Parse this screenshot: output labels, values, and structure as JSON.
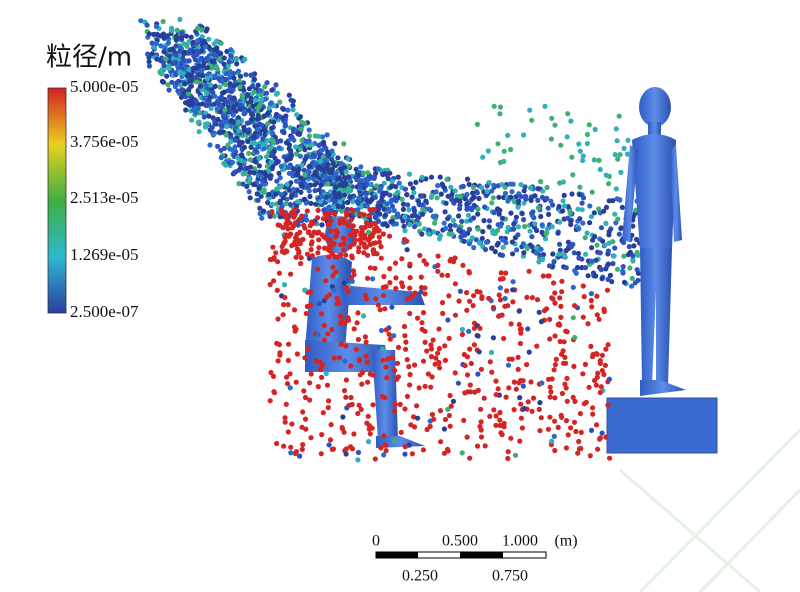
{
  "legend": {
    "title": "粒径/m",
    "labels": [
      "5.000e-05",
      "3.756e-05",
      "2.513e-05",
      "1.269e-05",
      "2.500e-07"
    ]
  },
  "scale_bar": {
    "top_labels": [
      "0",
      "0.500",
      "1.000",
      "(m)"
    ],
    "bottom_labels": [
      "0.250",
      "0.750"
    ]
  }
}
